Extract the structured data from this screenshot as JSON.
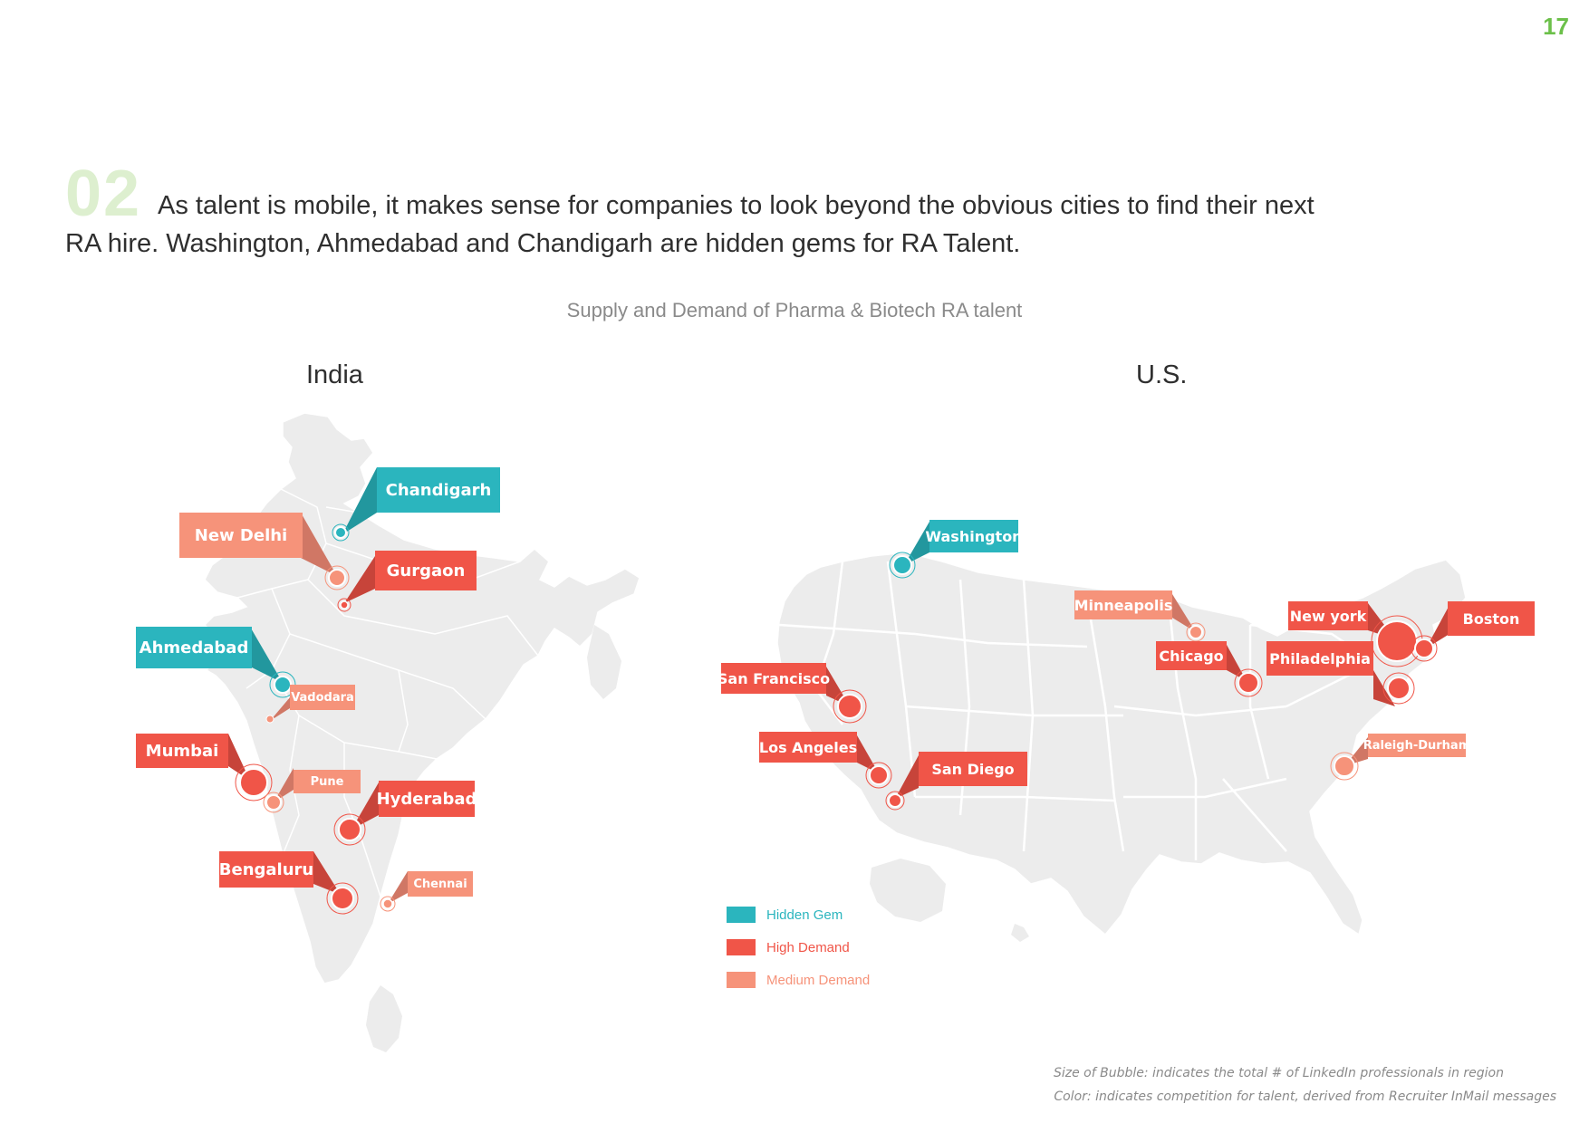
{
  "page_number": "17",
  "section_number": "02",
  "headline": "As talent is mobile, it makes sense for companies to look beyond the obvious cities to find their next RA hire. Washington, Ahmedabad and Chandigarh are hidden gems for RA Talent.",
  "subtitle": "Supply and Demand of Pharma & Biotech RA talent",
  "india_title": "India",
  "us_title": "U.S.",
  "colors": {
    "hidden_gem": "#2bb5be",
    "high_demand": "#f05548",
    "medium_demand": "#f6937a",
    "map_fill": "#ececec",
    "accent_green": "#6cc04a"
  },
  "india_cities": [
    {
      "name": "Chandigarh",
      "category": "Hidden Gem"
    },
    {
      "name": "New Delhi",
      "category": "Medium Demand"
    },
    {
      "name": "Gurgaon",
      "category": "High Demand"
    },
    {
      "name": "Ahmedabad",
      "category": "Hidden Gem"
    },
    {
      "name": "Vadodara",
      "category": "Medium Demand"
    },
    {
      "name": "Mumbai",
      "category": "High Demand"
    },
    {
      "name": "Pune",
      "category": "Medium Demand"
    },
    {
      "name": "Hyderabad",
      "category": "High Demand"
    },
    {
      "name": "Bengaluru",
      "category": "High Demand"
    },
    {
      "name": "Chennai",
      "category": "Medium Demand"
    }
  ],
  "us_cities": [
    {
      "name": "Washington",
      "category": "Hidden Gem"
    },
    {
      "name": "Minneapolis",
      "category": "Medium Demand"
    },
    {
      "name": "New york",
      "category": "High Demand"
    },
    {
      "name": "Boston",
      "category": "High Demand"
    },
    {
      "name": "Chicago",
      "category": "High Demand"
    },
    {
      "name": "Philadelphia",
      "category": "High Demand"
    },
    {
      "name": "San Francisco",
      "category": "High Demand"
    },
    {
      "name": "Los Angeles",
      "category": "High Demand"
    },
    {
      "name": "San Diego",
      "category": "High Demand"
    },
    {
      "name": "Raleigh-Durham",
      "category": "Medium Demand"
    }
  ],
  "legend": {
    "hidden_gem": "Hidden Gem",
    "high_demand": "High Demand",
    "medium_demand": "Medium Demand"
  },
  "footnotes": {
    "size": "Size of Bubble: indicates the total # of LinkedIn professionals in region",
    "color": "Color: indicates competition for talent, derived from Recruiter InMail messages"
  }
}
